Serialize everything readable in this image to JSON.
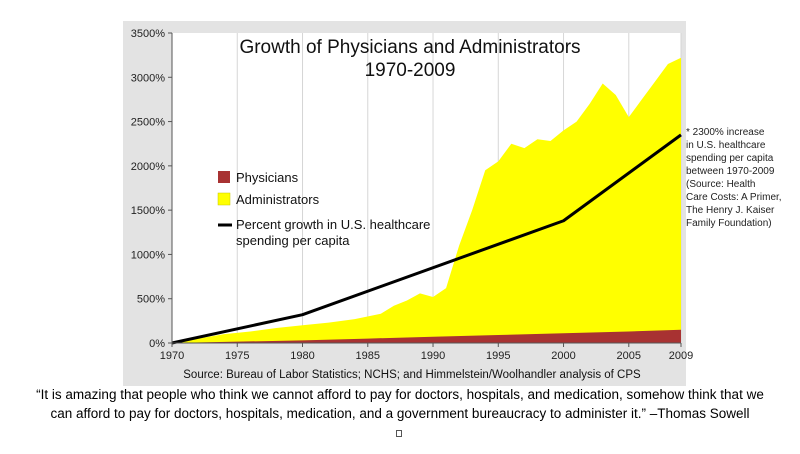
{
  "chart_data": {
    "type": "area",
    "title_lines": [
      "Growth of Physicians and Administrators",
      "1970-2009"
    ],
    "x_ticks": [
      1970,
      1975,
      1980,
      1985,
      1990,
      1995,
      2000,
      2005,
      2009
    ],
    "y_ticks": [
      "0%",
      "500%",
      "1000%",
      "1500%",
      "2000%",
      "2500%",
      "3000%",
      "3500%"
    ],
    "xlim": [
      1970,
      2009
    ],
    "ylim": [
      0,
      3500
    ],
    "grid": "vertical",
    "legend_placement": "left-middle",
    "series": [
      {
        "name": "Administrators",
        "color": "#ffff00",
        "x": [
          1970,
          1972,
          1974,
          1976,
          1978,
          1980,
          1982,
          1984,
          1986,
          1987,
          1988,
          1989,
          1990,
          1991,
          1992,
          1993,
          1994,
          1995,
          1996,
          1997,
          1998,
          1999,
          2000,
          2001,
          2002,
          2003,
          2004,
          2005,
          2006,
          2007,
          2008,
          2009
        ],
        "values": [
          0,
          50,
          100,
          130,
          170,
          200,
          230,
          270,
          330,
          420,
          480,
          560,
          520,
          620,
          1100,
          1500,
          1950,
          2050,
          2250,
          2200,
          2300,
          2280,
          2400,
          2500,
          2700,
          2930,
          2800,
          2550,
          2750,
          2950,
          3150,
          3220
        ]
      },
      {
        "name": "Physicians",
        "color": "#a83232",
        "x": [
          1970,
          1975,
          1980,
          1985,
          1990,
          1995,
          2000,
          2005,
          2009
        ],
        "values": [
          0,
          15,
          30,
          50,
          70,
          90,
          110,
          130,
          150
        ]
      },
      {
        "name": "Percent growth in U.S. healthcare spending per capita",
        "color": "#000000",
        "x": [
          1970,
          1980,
          2000,
          2009
        ],
        "values": [
          0,
          320,
          1380,
          2350
        ]
      }
    ],
    "legend": [
      {
        "label": "Physicians",
        "color": "#a83232",
        "kind": "box"
      },
      {
        "label": "Administrators",
        "color": "#ffff00",
        "kind": "box"
      },
      {
        "label_lines": [
          "Percent growth in U.S. healthcare",
          "spending per capita"
        ],
        "color": "#000000",
        "kind": "line"
      }
    ],
    "source": "Source: Bureau of Labor Statistics; NCHS; and Himmelstein/Woolhandler analysis of CPS"
  },
  "note_lines": [
    "* 2300% increase",
    "in U.S. healthcare",
    "spending per capita",
    "between 1970-2009",
    "(Source: Health",
    "Care Costs: A Primer,",
    "The Henry J. Kaiser",
    "Family Foundation)"
  ],
  "quote_lines": [
    "“It is amazing that people who think we cannot afford to pay for doctors, hospitals, and medication, somehow think that we",
    "can afford to pay for doctors, hospitals, medication, and a government bureaucracy to administer it.” –Thomas Sowell"
  ],
  "colors": {
    "frame_bg": "#e3e3e3",
    "plot_bg": "#ffffff",
    "grid": "#d6d6d6"
  }
}
